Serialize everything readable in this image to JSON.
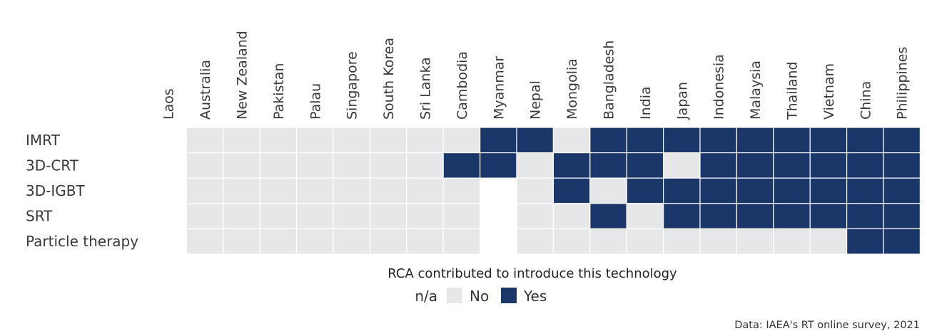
{
  "chart_data": {
    "type": "heatmap",
    "title": "",
    "xlabel": "",
    "ylabel": "",
    "columns": [
      "Laos",
      "Australia",
      "New Zealand",
      "Pakistan",
      "Palau",
      "Singapore",
      "South Korea",
      "Sri Lanka",
      "Cambodia",
      "Myanmar",
      "Nepal",
      "Mongolia",
      "Bangladesh",
      "India",
      "Japan",
      "Indonesia",
      "Malaysia",
      "Thailand",
      "Vietnam",
      "China",
      "Philippines"
    ],
    "rows": [
      "IMRT",
      "3D-CRT",
      "3D-IGBT",
      "SRT",
      "Particle therapy"
    ],
    "values": [
      [
        "n/a",
        "No",
        "No",
        "No",
        "No",
        "No",
        "No",
        "No",
        "No",
        "Yes",
        "Yes",
        "No",
        "Yes",
        "Yes",
        "Yes",
        "Yes",
        "Yes",
        "Yes",
        "Yes",
        "Yes",
        "Yes"
      ],
      [
        "n/a",
        "No",
        "No",
        "No",
        "No",
        "No",
        "No",
        "No",
        "Yes",
        "Yes",
        "No",
        "Yes",
        "Yes",
        "Yes",
        "No",
        "Yes",
        "Yes",
        "Yes",
        "Yes",
        "Yes",
        "Yes"
      ],
      [
        "n/a",
        "No",
        "No",
        "No",
        "No",
        "No",
        "No",
        "No",
        "No",
        "n/a",
        "No",
        "Yes",
        "No",
        "Yes",
        "Yes",
        "Yes",
        "Yes",
        "Yes",
        "Yes",
        "Yes",
        "Yes"
      ],
      [
        "n/a",
        "No",
        "No",
        "No",
        "No",
        "No",
        "No",
        "No",
        "No",
        "n/a",
        "No",
        "No",
        "Yes",
        "No",
        "Yes",
        "Yes",
        "Yes",
        "Yes",
        "Yes",
        "Yes",
        "Yes"
      ],
      [
        "n/a",
        "No",
        "No",
        "No",
        "No",
        "No",
        "No",
        "No",
        "No",
        "n/a",
        "No",
        "No",
        "No",
        "No",
        "No",
        "No",
        "No",
        "No",
        "No",
        "Yes",
        "Yes"
      ]
    ],
    "legend": {
      "title": "RCA contributed to introduce this technology",
      "position": "bottom",
      "items": [
        {
          "label": "n/a",
          "color": "#ffffff"
        },
        {
          "label": "No",
          "color": "#e6e7e8"
        },
        {
          "label": "Yes",
          "color": "#1b3668"
        }
      ]
    },
    "colors": {
      "n/a": "#ffffff",
      "No": "#e6e7e8",
      "Yes": "#1b3668"
    }
  },
  "source": "Data: IAEA's RT online survey, 2021"
}
